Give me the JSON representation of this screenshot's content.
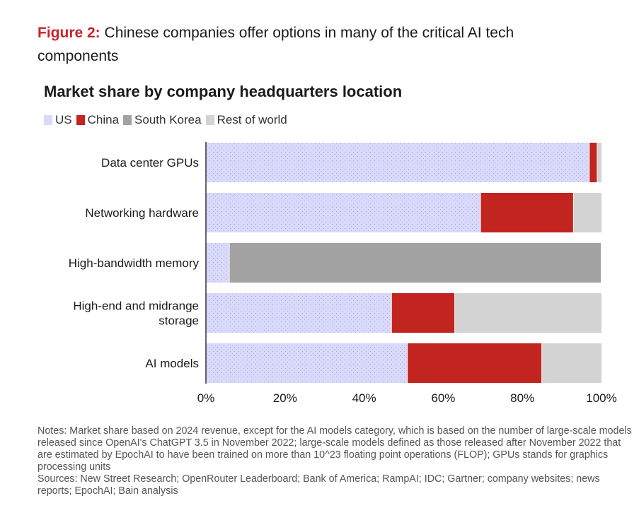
{
  "figure": {
    "number_label": "Figure 2:",
    "title": "Chinese companies offer options in many of the critical AI tech components"
  },
  "chart_data": {
    "type": "bar",
    "orientation": "horizontal",
    "stacked": true,
    "title": "Market share by company headquarters location",
    "xlabel": "",
    "ylabel": "",
    "xlim": [
      0,
      100
    ],
    "x_ticks": [
      "0%",
      "20%",
      "40%",
      "60%",
      "80%",
      "100%"
    ],
    "x_tick_values": [
      0,
      20,
      40,
      60,
      80,
      100
    ],
    "grid": false,
    "legend_position": "top-left",
    "categories": [
      "Data center GPUs",
      "Networking hardware",
      "High-bandwidth memory",
      "High-end and midrange storage",
      "AI models"
    ],
    "series": [
      {
        "name": "US",
        "color": "#d9d9fb",
        "values": [
          97,
          69.5,
          6,
          47,
          51
        ]
      },
      {
        "name": "China",
        "color": "#c2241f",
        "values": [
          2,
          23.5,
          0,
          16,
          34
        ]
      },
      {
        "name": "South Korea",
        "color": "#a3a3a3",
        "values": [
          0,
          0,
          94,
          0,
          0
        ]
      },
      {
        "name": "Rest of world",
        "color": "#d3d3d3",
        "values": [
          1,
          7,
          0,
          37,
          15
        ]
      }
    ]
  },
  "notes": {
    "notes_text": "Notes: Market share based on 2024 revenue, except for the AI models category, which is based on the number of large-scale models released since OpenAI's ChatGPT 3.5 in November 2022; large-scale models defined as those released after November 2022 that are estimated by EpochAI to have been trained on more than 10^23 floating point operations (FLOP); GPUs stands for graphics processing units",
    "sources_text": "Sources: New Street Research; OpenRouter Leaderboard; Bank of America; RampAI; IDC; Gartner; company websites; news reports; EpochAI; Bain analysis"
  }
}
